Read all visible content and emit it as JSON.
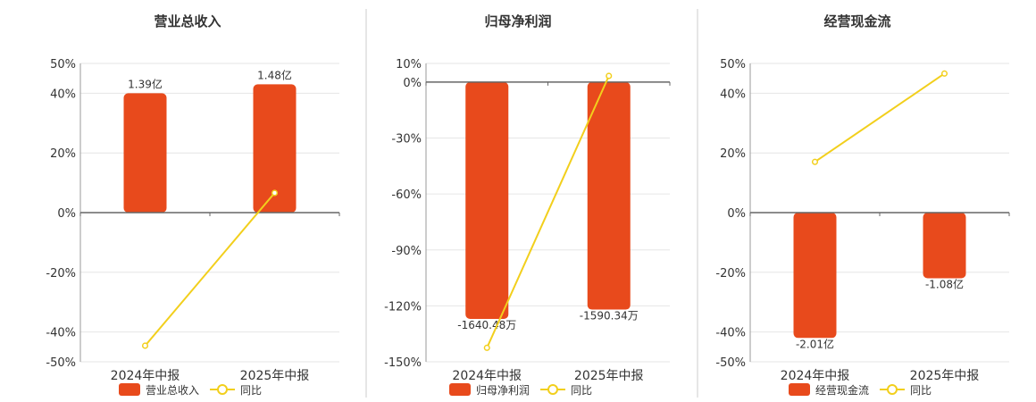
{
  "colors": {
    "bar": "#E84A1C",
    "line": "#F2CF1C",
    "axis": "#666666",
    "grid": "#E6E6E6",
    "divider": "#CCCCCC",
    "text": "#333333"
  },
  "chart_data": [
    {
      "type": "bar",
      "title": "营业总收入",
      "categories": [
        "2024年中报",
        "2025年中报"
      ],
      "yticks": [
        "50%",
        "40%",
        "20%",
        "0%",
        "-20%",
        "-40%",
        "-50%"
      ],
      "ylim": [
        -50,
        50
      ],
      "series": [
        {
          "name": "营业总收入",
          "type": "bar",
          "values": [
            40,
            43
          ],
          "labels": [
            "1.39亿",
            "1.48亿"
          ]
        },
        {
          "name": "同比",
          "type": "line",
          "values": [
            -44.6,
            6.6
          ]
        }
      ]
    },
    {
      "type": "bar",
      "title": "归母净利润",
      "categories": [
        "2024年中报",
        "2025年中报"
      ],
      "yticks": [
        "10%",
        "0%",
        "-30%",
        "-60%",
        "-90%",
        "-120%",
        "-150%"
      ],
      "ylim": [
        -150,
        10
      ],
      "series": [
        {
          "name": "归母净利润",
          "type": "bar",
          "values": [
            -127,
            -122
          ],
          "labels": [
            "-1640.48万",
            "-1590.34万"
          ]
        },
        {
          "name": "同比",
          "type": "line",
          "values": [
            -142.5,
            3.3
          ]
        }
      ]
    },
    {
      "type": "bar",
      "title": "经营现金流",
      "categories": [
        "2024年中报",
        "2025年中报"
      ],
      "yticks": [
        "50%",
        "40%",
        "20%",
        "0%",
        "-20%",
        "-40%",
        "-50%"
      ],
      "ylim": [
        -50,
        50
      ],
      "series": [
        {
          "name": "经营现金流",
          "type": "bar",
          "values": [
            -42,
            -22
          ],
          "labels": [
            "-2.01亿",
            "-1.08亿"
          ]
        },
        {
          "name": "同比",
          "type": "line",
          "values": [
            17,
            46.6
          ]
        }
      ]
    }
  ]
}
